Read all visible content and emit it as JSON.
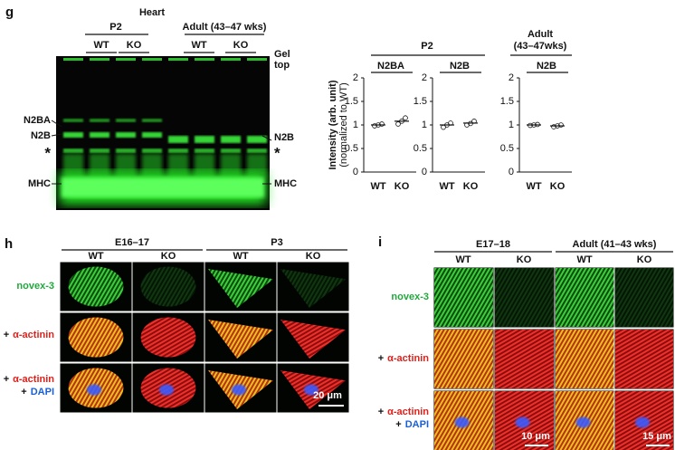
{
  "figure": {
    "g": {
      "label": "g",
      "tissue": "Heart",
      "groups": [
        "P2",
        "Adult (43–47 wks)"
      ],
      "lanes": [
        "WT",
        "KO",
        "WT",
        "KO"
      ],
      "gel_top": [
        "Gel",
        "top"
      ],
      "left_markers": [
        "N2BA",
        "N2B",
        "*",
        "MHC"
      ],
      "right_markers": [
        "N2B",
        "*",
        "MHC"
      ],
      "plot_groups": [
        [
          "P2"
        ],
        [
          "Adult",
          "(43–47wks)"
        ]
      ]
    },
    "h": {
      "label": "h",
      "groups": [
        "E16–17",
        "P3"
      ],
      "columns": [
        "WT",
        "KO",
        "WT",
        "KO"
      ],
      "rows": [
        [
          "novex-3"
        ],
        [
          "+",
          "α-actinin"
        ],
        [
          "+",
          "α-actinin",
          "+",
          "DAPI"
        ]
      ],
      "scale_bar": "20 μm"
    },
    "i": {
      "label": "i",
      "groups": [
        "E17–18",
        "Adult (41–43 wks)"
      ],
      "columns": [
        "WT",
        "KO",
        "WT",
        "KO"
      ],
      "rows": [
        [
          "novex-3"
        ],
        [
          "+",
          "α-actinin"
        ],
        [
          "+",
          "α-actinin",
          "+",
          "DAPI"
        ]
      ],
      "scale_bars": [
        "10 μm",
        "15 μm"
      ]
    }
  },
  "chart_data": [
    {
      "type": "scatter",
      "title": "N2BA",
      "ylabel": [
        "Intensity (arb. unit)",
        "(normalized to WT)"
      ],
      "categories": [
        "WT",
        "KO"
      ],
      "values": [
        1.0,
        1.08
      ],
      "points": [
        [
          0.98,
          1.0,
          1.02
        ],
        [
          1.02,
          1.08,
          1.15
        ]
      ],
      "ylim": [
        0,
        2
      ],
      "yticks": [
        0,
        0.5,
        1,
        1.5,
        2
      ]
    },
    {
      "type": "scatter",
      "title": "N2B",
      "categories": [
        "WT",
        "KO"
      ],
      "values": [
        1.0,
        1.04
      ],
      "points": [
        [
          0.95,
          1.0,
          1.04
        ],
        [
          1.0,
          1.03,
          1.08
        ]
      ],
      "ylim": [
        0,
        2
      ],
      "yticks": [
        0,
        0.5,
        1,
        1.5,
        2
      ]
    },
    {
      "type": "scatter",
      "title": "N2B",
      "categories": [
        "WT",
        "KO"
      ],
      "values": [
        1.0,
        0.98
      ],
      "points": [
        [
          0.99,
          1.0,
          1.01
        ],
        [
          0.96,
          0.98,
          1.0
        ]
      ],
      "ylim": [
        0,
        2
      ],
      "yticks": [
        0,
        0.5,
        1,
        1.5,
        2
      ]
    }
  ]
}
